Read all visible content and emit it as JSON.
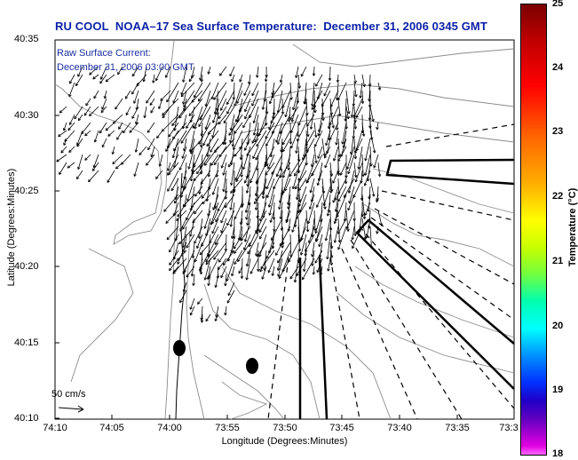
{
  "title": "RU COOL  NOAA–17 Sea Surface Temperature:  December 31, 2006 0345 GMT",
  "legend": {
    "line1": "Raw Surface Current:",
    "line2": "December 31, 2006 03:00 GMT"
  },
  "axes": {
    "x_title": "Longitude (Degrees:Minutes)",
    "y_title": "Latitude (Degrees:Minutes)",
    "x_ticks": [
      "74:10",
      "74:05",
      "74:00",
      "73:55",
      "73:50",
      "73:45",
      "73:40",
      "73:35",
      "73:3"
    ],
    "y_ticks": [
      "40:35",
      "40:30",
      "40:25",
      "40:20",
      "40:15",
      "40:10"
    ]
  },
  "scale_arrow": {
    "label": "50 cm/s"
  },
  "colorbar": {
    "title": "Temperature (°C)",
    "ticks": [
      "25",
      "24",
      "23",
      "22",
      "21",
      "20",
      "19",
      "18"
    ]
  },
  "colors": {
    "title": "#0a1fa8",
    "legend": "#1a2fa0",
    "contour": "#8c8c8c"
  },
  "icons": [
    "north-arrow-icon"
  ]
}
